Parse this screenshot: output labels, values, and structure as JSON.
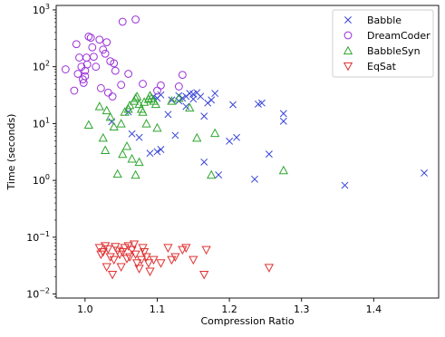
{
  "chart_data": {
    "type": "scatter",
    "title": "",
    "xlabel": "Compression Ratio",
    "ylabel": "Time (seconds)",
    "xlim": [
      0.96,
      1.49
    ],
    "ylim": [
      0.0085,
      1200
    ],
    "yscale": "log",
    "grid": false,
    "legend_position": "top-right",
    "x_ticks": [
      {
        "value": 1.0,
        "label": "1.0"
      },
      {
        "value": 1.1,
        "label": "1.1"
      },
      {
        "value": 1.2,
        "label": "1.2"
      },
      {
        "value": 1.3,
        "label": "1.3"
      },
      {
        "value": 1.4,
        "label": "1.4"
      }
    ],
    "y_ticks": [
      {
        "value": 0.01,
        "base": "10",
        "exp": "−2"
      },
      {
        "value": 0.1,
        "base": "10",
        "exp": "−1"
      },
      {
        "value": 1,
        "base": "10",
        "exp": "0"
      },
      {
        "value": 10,
        "base": "10",
        "exp": "1"
      },
      {
        "value": 100,
        "base": "10",
        "exp": "2"
      },
      {
        "value": 1000,
        "base": "10",
        "exp": "3"
      }
    ],
    "series": [
      {
        "name": "Babble",
        "marker": "x",
        "color": "#3845d6",
        "points": [
          [
            1.037,
            10.8
          ],
          [
            1.06,
            16
          ],
          [
            1.065,
            6.6
          ],
          [
            1.075,
            5.7
          ],
          [
            1.09,
            3.0
          ],
          [
            1.1,
            3.2
          ],
          [
            1.105,
            3.5
          ],
          [
            1.095,
            30
          ],
          [
            1.1,
            28
          ],
          [
            1.105,
            32
          ],
          [
            1.115,
            14.5
          ],
          [
            1.12,
            26
          ],
          [
            1.125,
            6.2
          ],
          [
            1.13,
            31
          ],
          [
            1.13,
            25
          ],
          [
            1.135,
            28
          ],
          [
            1.14,
            30
          ],
          [
            1.14,
            20
          ],
          [
            1.145,
            34
          ],
          [
            1.15,
            33
          ],
          [
            1.15,
            27
          ],
          [
            1.155,
            35
          ],
          [
            1.16,
            30
          ],
          [
            1.165,
            13.5
          ],
          [
            1.165,
            2.1
          ],
          [
            1.17,
            23
          ],
          [
            1.175,
            26
          ],
          [
            1.18,
            34
          ],
          [
            1.185,
            1.25
          ],
          [
            1.2,
            4.9
          ],
          [
            1.205,
            21.5
          ],
          [
            1.21,
            5.7
          ],
          [
            1.235,
            1.05
          ],
          [
            1.24,
            22
          ],
          [
            1.245,
            23
          ],
          [
            1.255,
            2.9
          ],
          [
            1.275,
            15
          ],
          [
            1.275,
            11
          ],
          [
            1.36,
            0.82
          ],
          [
            1.47,
            1.35
          ]
        ]
      },
      {
        "name": "DreamCoder",
        "marker": "circle",
        "color": "#9b30d9",
        "points": [
          [
            0.973,
            90
          ],
          [
            0.985,
            38
          ],
          [
            0.988,
            250
          ],
          [
            0.99,
            75
          ],
          [
            0.992,
            145
          ],
          [
            0.995,
            100
          ],
          [
            0.997,
            60
          ],
          [
            0.998,
            52
          ],
          [
            1.0,
            85
          ],
          [
            1.0,
            68
          ],
          [
            1.002,
            145
          ],
          [
            1.003,
            110
          ],
          [
            1.005,
            340
          ],
          [
            1.008,
            325
          ],
          [
            1.01,
            220
          ],
          [
            1.012,
            150
          ],
          [
            1.015,
            100
          ],
          [
            1.02,
            300
          ],
          [
            1.022,
            42
          ],
          [
            1.025,
            200
          ],
          [
            1.028,
            170
          ],
          [
            1.03,
            270
          ],
          [
            1.032,
            35
          ],
          [
            1.035,
            125
          ],
          [
            1.038,
            30
          ],
          [
            1.04,
            115
          ],
          [
            1.042,
            85
          ],
          [
            1.05,
            48
          ],
          [
            1.052,
            620
          ],
          [
            1.06,
            75
          ],
          [
            1.07,
            680
          ],
          [
            1.08,
            50
          ],
          [
            1.1,
            38
          ],
          [
            1.105,
            47
          ],
          [
            1.13,
            45
          ],
          [
            1.135,
            72
          ]
        ]
      },
      {
        "name": "BabbleSyn",
        "marker": "triangle-up",
        "color": "#2ea52e",
        "points": [
          [
            1.005,
            9.5
          ],
          [
            1.02,
            20
          ],
          [
            1.025,
            5.6
          ],
          [
            1.028,
            3.4
          ],
          [
            1.03,
            17
          ],
          [
            1.035,
            13
          ],
          [
            1.04,
            8.8
          ],
          [
            1.045,
            1.3
          ],
          [
            1.05,
            10
          ],
          [
            1.052,
            2.9
          ],
          [
            1.055,
            16
          ],
          [
            1.058,
            4.0
          ],
          [
            1.06,
            18
          ],
          [
            1.062,
            21
          ],
          [
            1.065,
            2.4
          ],
          [
            1.068,
            25
          ],
          [
            1.07,
            28
          ],
          [
            1.072,
            30
          ],
          [
            1.075,
            22
          ],
          [
            1.078,
            18
          ],
          [
            1.08,
            16
          ],
          [
            1.082,
            24
          ],
          [
            1.085,
            10
          ],
          [
            1.088,
            27
          ],
          [
            1.09,
            31
          ],
          [
            1.092,
            28
          ],
          [
            1.095,
            25
          ],
          [
            1.098,
            22
          ],
          [
            1.07,
            1.25
          ],
          [
            1.075,
            2.1
          ],
          [
            1.1,
            8.4
          ],
          [
            1.12,
            25
          ],
          [
            1.13,
            28
          ],
          [
            1.145,
            19
          ],
          [
            1.155,
            5.6
          ],
          [
            1.175,
            1.25
          ],
          [
            1.18,
            6.8
          ],
          [
            1.275,
            1.5
          ]
        ]
      },
      {
        "name": "EqSat",
        "marker": "triangle-down",
        "color": "#e03131",
        "points": [
          [
            1.02,
            0.065
          ],
          [
            1.022,
            0.05
          ],
          [
            1.025,
            0.055
          ],
          [
            1.028,
            0.07
          ],
          [
            1.03,
            0.03
          ],
          [
            1.032,
            0.062
          ],
          [
            1.035,
            0.045
          ],
          [
            1.038,
            0.022
          ],
          [
            1.04,
            0.04
          ],
          [
            1.042,
            0.068
          ],
          [
            1.045,
            0.058
          ],
          [
            1.048,
            0.05
          ],
          [
            1.05,
            0.03
          ],
          [
            1.052,
            0.055
          ],
          [
            1.055,
            0.065
          ],
          [
            1.058,
            0.042
          ],
          [
            1.06,
            0.07
          ],
          [
            1.062,
            0.045
          ],
          [
            1.065,
            0.06
          ],
          [
            1.068,
            0.075
          ],
          [
            1.07,
            0.05
          ],
          [
            1.072,
            0.035
          ],
          [
            1.075,
            0.028
          ],
          [
            1.078,
            0.04
          ],
          [
            1.08,
            0.065
          ],
          [
            1.082,
            0.055
          ],
          [
            1.085,
            0.045
          ],
          [
            1.088,
            0.035
          ],
          [
            1.09,
            0.025
          ],
          [
            1.095,
            0.04
          ],
          [
            1.105,
            0.035
          ],
          [
            1.115,
            0.065
          ],
          [
            1.12,
            0.04
          ],
          [
            1.125,
            0.045
          ],
          [
            1.135,
            0.06
          ],
          [
            1.14,
            0.065
          ],
          [
            1.15,
            0.04
          ],
          [
            1.165,
            0.022
          ],
          [
            1.168,
            0.06
          ],
          [
            1.255,
            0.029
          ]
        ]
      }
    ]
  }
}
